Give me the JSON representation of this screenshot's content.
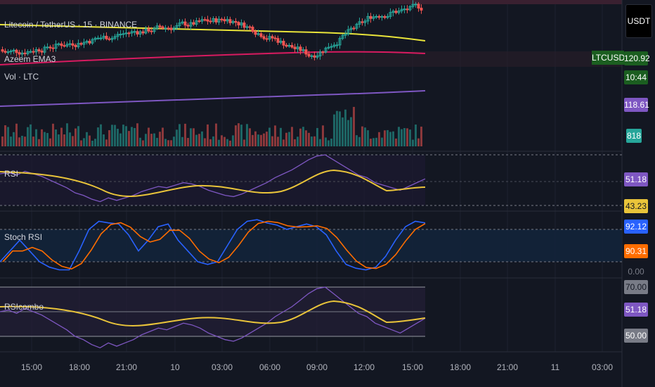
{
  "header": {
    "symbol": "Litecoin / TetherUS · 15 · BINANCE",
    "indicator": "Azeem EMA3",
    "volume": "Vol · LTC"
  },
  "currency_badge": "USDT",
  "pane_titles": {
    "rsi": "RSI",
    "stoch": "Stoch RSI",
    "rsicombo": "RSIcombo"
  },
  "price_tags": {
    "ticker": "LTCUSDT",
    "last": "120.92",
    "countdown": "10:44",
    "ema_purple": "118.61",
    "volume": "818",
    "rsi": "51.18",
    "rsi_ma": "43.23",
    "stoch_k": "92.12",
    "stoch_d": "90.31",
    "stoch_zero": "0.00",
    "combo_top": "70.00",
    "combo_rsi": "51.18",
    "combo_mid": "50.00"
  },
  "colors": {
    "background": "#131722",
    "up": "#26a69a",
    "down": "#ef5350",
    "ema_yellow": "#e9e43a",
    "ema_pink": "#d81b60",
    "ema_purple": "#7e57c2",
    "rsi": "#7e57c2",
    "rsi_ma": "#e9c43a",
    "stoch_k": "#2962ff",
    "stoch_d": "#ff6d00"
  },
  "chart_data": {
    "type": "line",
    "x_ticks": [
      "15:00",
      "18:00",
      "21:00",
      "10",
      "03:00",
      "06:00",
      "09:00",
      "12:00",
      "15:00",
      "18:00",
      "21:00",
      "11",
      "03:00"
    ],
    "price_axis_visible": [
      "120.92",
      "118.61"
    ],
    "rsi_levels": [
      70,
      50,
      30
    ],
    "stoch_levels": [
      80,
      20,
      0
    ],
    "series": [
      {
        "name": "RSI",
        "values": [
          55,
          56,
          54,
          57,
          55,
          53,
          50,
          47,
          44,
          40,
          38,
          35,
          33,
          36,
          34,
          36,
          38,
          41,
          43,
          45,
          44,
          46,
          48,
          47,
          45,
          42,
          40,
          38,
          37,
          39,
          42,
          45,
          48,
          52,
          55,
          58,
          62,
          66,
          69,
          70,
          66,
          62,
          58,
          54,
          52,
          48,
          46,
          44,
          42,
          45,
          48,
          51
        ]
      },
      {
        "name": "Stoch RSI",
        "values": [
          20,
          40,
          60,
          40,
          20,
          10,
          5,
          5,
          40,
          80,
          95,
          92,
          90,
          70,
          40,
          60,
          85,
          90,
          60,
          40,
          20,
          15,
          20,
          50,
          80,
          95,
          98,
          92,
          88,
          80,
          85,
          90,
          85,
          70,
          40,
          15,
          8,
          5,
          10,
          30,
          60,
          85,
          95,
          92
        ]
      }
    ]
  }
}
